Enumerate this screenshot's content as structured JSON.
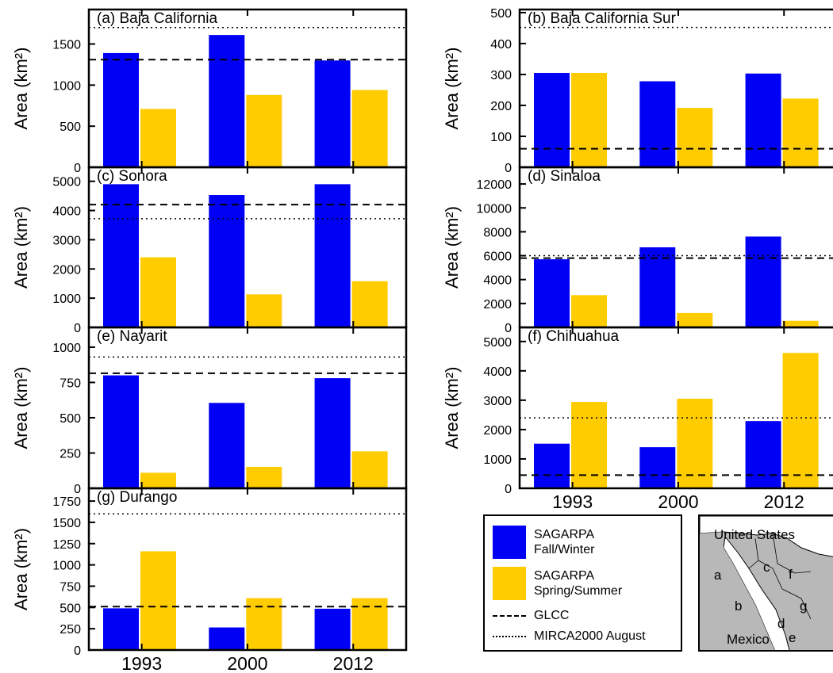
{
  "colors": {
    "fall_winter": "#0000f5",
    "spring_summer": "#ffcc00",
    "reference_lines": "#000000",
    "map_land_mexico": "#b8b8b8",
    "map_land_us": "#ffffff"
  },
  "legend": {
    "fall_winter": [
      "SAGARPA",
      "Fall/Winter"
    ],
    "spring_summer": [
      "SAGARPA",
      "Spring/Summer"
    ],
    "glcc": "GLCC",
    "mirca": "MIRCA2000 August"
  },
  "map": {
    "country_top": "United States",
    "country_bottom": "Mexico",
    "letters": [
      "a",
      "b",
      "c",
      "d",
      "e",
      "f",
      "g"
    ]
  },
  "chart_data": [
    {
      "type": "bar",
      "title": "(a) Baja California",
      "ylabel": "Area (km²)",
      "categories": [
        "1993",
        "2000",
        "2012"
      ],
      "series": [
        {
          "name": "SAGARPA Fall/Winter",
          "values": [
            1390,
            1610,
            1300
          ]
        },
        {
          "name": "SAGARPA Spring/Summer",
          "values": [
            710,
            880,
            940
          ]
        }
      ],
      "ylim": [
        0,
        1920
      ],
      "yticks": [
        "0",
        "500",
        "1000",
        "1500"
      ],
      "glcc": 1310,
      "mirca": 1700
    },
    {
      "type": "bar",
      "title": "(b) Baja California Sur",
      "ylabel": "Area (km²)",
      "categories": [
        "1993",
        "2000",
        "2012"
      ],
      "series": [
        {
          "name": "SAGARPA Fall/Winter",
          "values": [
            305,
            278,
            303
          ]
        },
        {
          "name": "SAGARPA Spring/Summer",
          "values": [
            305,
            192,
            222
          ]
        }
      ],
      "ylim": [
        0,
        510
      ],
      "yticks": [
        "0",
        "100",
        "200",
        "300",
        "400",
        "500"
      ],
      "glcc": 60,
      "mirca": 452
    },
    {
      "type": "bar",
      "title": "(c) Sonora",
      "ylabel": "Area (km²)",
      "categories": [
        "1993",
        "2000",
        "2012"
      ],
      "series": [
        {
          "name": "SAGARPA Fall/Winter",
          "values": [
            4900,
            4530,
            4900
          ]
        },
        {
          "name": "SAGARPA Spring/Summer",
          "values": [
            2400,
            1130,
            1580
          ]
        }
      ],
      "ylim": [
        0,
        5480
      ],
      "yticks": [
        "0",
        "1000",
        "2000",
        "3000",
        "4000",
        "5000"
      ],
      "glcc": 4200,
      "mirca": 3720
    },
    {
      "type": "bar",
      "title": "(d) Sinaloa",
      "ylabel": "Area (km²)",
      "categories": [
        "1993",
        "2000",
        "2012"
      ],
      "series": [
        {
          "name": "SAGARPA Fall/Winter",
          "values": [
            5700,
            6700,
            7600
          ]
        },
        {
          "name": "SAGARPA Spring/Summer",
          "values": [
            2700,
            1200,
            550
          ]
        }
      ],
      "ylim": [
        0,
        13400
      ],
      "yticks": [
        "0",
        "2000",
        "4000",
        "6000",
        "8000",
        "10000",
        "12000"
      ],
      "glcc": 5800,
      "mirca": 6000
    },
    {
      "type": "bar",
      "title": "(e) Nayarit",
      "ylabel": "Area (km²)",
      "categories": [
        "1993",
        "2000",
        "2012"
      ],
      "series": [
        {
          "name": "SAGARPA Fall/Winter",
          "values": [
            800,
            605,
            780
          ]
        },
        {
          "name": "SAGARPA Spring/Summer",
          "values": [
            110,
            152,
            262
          ]
        }
      ],
      "ylim": [
        0,
        1140
      ],
      "yticks": [
        "0",
        "250",
        "500",
        "750",
        "1000"
      ],
      "glcc": 815,
      "mirca": 930
    },
    {
      "type": "bar",
      "title": "(f) Chihuahua",
      "ylabel": "Area (km²)",
      "categories": [
        "1993",
        "2000",
        "2012"
      ],
      "series": [
        {
          "name": "SAGARPA Fall/Winter",
          "values": [
            1520,
            1400,
            2290
          ]
        },
        {
          "name": "SAGARPA Spring/Summer",
          "values": [
            2940,
            3050,
            4610
          ]
        }
      ],
      "ylim": [
        0,
        5480
      ],
      "yticks": [
        "0",
        "1000",
        "2000",
        "3000",
        "4000",
        "5000"
      ],
      "glcc": 450,
      "mirca": 2400
    },
    {
      "type": "bar",
      "title": "(g) Durango",
      "ylabel": "Area (km²)",
      "categories": [
        "1993",
        "2000",
        "2012"
      ],
      "series": [
        {
          "name": "SAGARPA Fall/Winter",
          "values": [
            490,
            265,
            485
          ]
        },
        {
          "name": "SAGARPA Spring/Summer",
          "values": [
            1160,
            610,
            610
          ]
        }
      ],
      "ylim": [
        0,
        1900
      ],
      "yticks": [
        "0",
        "250",
        "500",
        "750",
        "1000",
        "1250",
        "1500",
        "1750"
      ],
      "glcc": 510,
      "mirca": 1600
    }
  ]
}
